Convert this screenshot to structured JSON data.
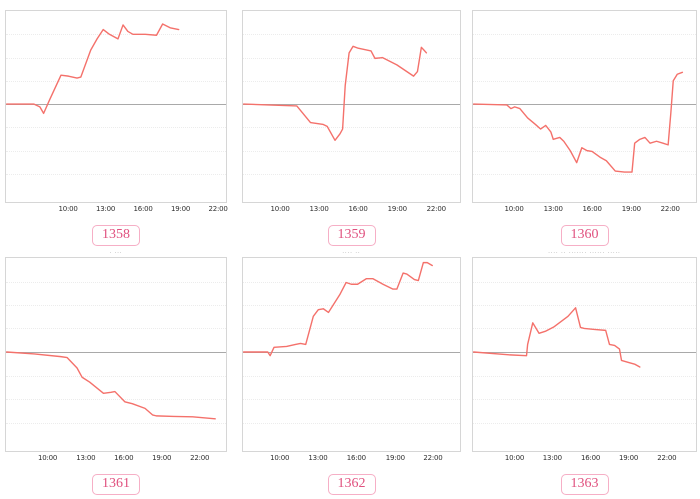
{
  "page": {
    "background": "#ffffff",
    "description_text_color": "#8a8a8a"
  },
  "colors": {
    "line": "#f4716b",
    "zero_line": "#a9a9a9",
    "gridline": "#ececec",
    "panel_border": "#d6d6d6",
    "badge_text": "#e0517f",
    "badge_border": "#f6afc6",
    "tick_text": "#2f2f2f"
  },
  "chart_data": {
    "type": "line",
    "x_tick_labels": [
      "10:00",
      "13:00",
      "16:00",
      "19:00",
      "22:00"
    ],
    "line_color": "#f4716b",
    "grid": "faint dotted horizontal gridlines with solid gray zero baseline",
    "legend": "none",
    "y_axis_labels": "none (values relative to zero baseline, +100 = panel top)",
    "charts": [
      {
        "label": "1358",
        "caption_top": "·········· ····",
        "tick_pct": [
          28.4,
          45.3,
          62.2,
          79.1,
          96.0
        ],
        "points": [
          [
            5.0,
            0
          ],
          [
            7.2,
            0
          ],
          [
            7.7,
            -3
          ],
          [
            8.0,
            -10
          ],
          [
            8.5,
            5
          ],
          [
            9.4,
            31
          ],
          [
            10.0,
            30
          ],
          [
            10.7,
            28
          ],
          [
            11.0,
            29
          ],
          [
            11.8,
            58
          ],
          [
            12.3,
            70
          ],
          [
            12.8,
            80
          ],
          [
            13.3,
            75
          ],
          [
            14.0,
            70
          ],
          [
            14.4,
            85
          ],
          [
            14.8,
            78
          ],
          [
            15.2,
            75
          ],
          [
            16.2,
            75
          ],
          [
            17.1,
            74
          ],
          [
            17.6,
            86
          ],
          [
            18.2,
            82
          ],
          [
            18.9,
            80
          ]
        ]
      },
      {
        "label": "1359",
        "tick_pct": [
          17.4,
          35.2,
          53.0,
          70.9,
          88.7
        ],
        "points": [
          [
            7.1,
            0
          ],
          [
            9.0,
            -1
          ],
          [
            11.25,
            -2
          ],
          [
            12.3,
            -20
          ],
          [
            13.3,
            -22
          ],
          [
            13.6,
            -24
          ],
          [
            14.2,
            -39
          ],
          [
            14.6,
            -32
          ],
          [
            14.8,
            -27
          ],
          [
            15.0,
            20
          ],
          [
            15.3,
            55
          ],
          [
            15.6,
            62
          ],
          [
            16.0,
            60
          ],
          [
            17.0,
            57
          ],
          [
            17.3,
            49
          ],
          [
            17.9,
            50
          ],
          [
            19.0,
            42
          ],
          [
            20.3,
            30
          ],
          [
            20.6,
            35
          ],
          [
            20.9,
            61
          ],
          [
            21.1,
            58
          ],
          [
            21.3,
            55
          ]
        ]
      },
      {
        "label": "1360",
        "tick_pct": [
          18.7,
          36.1,
          53.4,
          70.8,
          88.1
        ],
        "points": [
          [
            6.7,
            0
          ],
          [
            9.4,
            -1
          ],
          [
            9.7,
            -5
          ],
          [
            10.0,
            -3
          ],
          [
            10.4,
            -5
          ],
          [
            11.0,
            -15
          ],
          [
            11.6,
            -22
          ],
          [
            12.0,
            -27
          ],
          [
            12.4,
            -23
          ],
          [
            12.8,
            -30
          ],
          [
            13.0,
            -38
          ],
          [
            13.5,
            -36
          ],
          [
            13.8,
            -40
          ],
          [
            14.3,
            -50
          ],
          [
            14.8,
            -63
          ],
          [
            15.2,
            -47
          ],
          [
            15.6,
            -50
          ],
          [
            16.0,
            -51
          ],
          [
            16.6,
            -57
          ],
          [
            17.1,
            -61
          ],
          [
            17.8,
            -72
          ],
          [
            18.5,
            -73
          ],
          [
            19.1,
            -73
          ],
          [
            19.3,
            -42
          ],
          [
            19.7,
            -38
          ],
          [
            20.1,
            -36
          ],
          [
            20.5,
            -42
          ],
          [
            21.0,
            -40
          ],
          [
            21.5,
            -42
          ],
          [
            21.9,
            -44
          ],
          [
            22.1,
            -10
          ],
          [
            22.3,
            25
          ],
          [
            22.6,
            32
          ],
          [
            23.0,
            34
          ]
        ]
      },
      {
        "label": "1361",
        "caption": "· ···",
        "tick_pct": [
          19.2,
          36.4,
          53.5,
          70.6,
          87.7
        ],
        "points": [
          [
            6.6,
            0
          ],
          [
            8.9,
            -2
          ],
          [
            11.0,
            -5
          ],
          [
            11.5,
            -6
          ],
          [
            12.3,
            -17
          ],
          [
            12.7,
            -27
          ],
          [
            13.3,
            -32
          ],
          [
            14.4,
            -44
          ],
          [
            15.0,
            -43
          ],
          [
            15.3,
            -42
          ],
          [
            16.1,
            -53
          ],
          [
            16.7,
            -55
          ],
          [
            17.7,
            -60
          ],
          [
            18.3,
            -67
          ],
          [
            18.6,
            -68
          ],
          [
            20.0,
            -68.5
          ],
          [
            21.5,
            -69
          ],
          [
            23.3,
            -71
          ]
        ]
      },
      {
        "label": "1362",
        "caption": "···· ··",
        "tick_pct": [
          17.2,
          34.7,
          52.2,
          70.0,
          87.2
        ],
        "points": [
          [
            7.0,
            0
          ],
          [
            9.0,
            0
          ],
          [
            9.2,
            -4
          ],
          [
            9.5,
            5
          ],
          [
            10.5,
            6
          ],
          [
            11.2,
            8
          ],
          [
            11.6,
            9
          ],
          [
            12.0,
            8
          ],
          [
            12.6,
            38
          ],
          [
            13.0,
            45
          ],
          [
            13.4,
            46
          ],
          [
            13.8,
            42
          ],
          [
            14.7,
            61
          ],
          [
            15.2,
            74
          ],
          [
            15.6,
            72
          ],
          [
            16.1,
            72
          ],
          [
            16.8,
            78
          ],
          [
            17.3,
            78
          ],
          [
            18.1,
            72
          ],
          [
            18.9,
            67
          ],
          [
            19.2,
            67
          ],
          [
            19.7,
            84
          ],
          [
            20.0,
            83
          ],
          [
            20.6,
            77
          ],
          [
            20.9,
            76
          ],
          [
            21.3,
            95
          ],
          [
            21.6,
            95
          ],
          [
            22.0,
            92
          ]
        ]
      },
      {
        "label": "1363",
        "caption": "···· ·· ······· ······ ·····",
        "tick_pct": [
          18.9,
          35.7,
          52.7,
          69.6,
          86.6
        ],
        "points": [
          [
            6.6,
            0
          ],
          [
            9.6,
            -3
          ],
          [
            10.9,
            -4
          ],
          [
            11.0,
            8
          ],
          [
            11.4,
            31
          ],
          [
            11.9,
            20
          ],
          [
            12.4,
            22
          ],
          [
            13.1,
            27
          ],
          [
            14.2,
            38
          ],
          [
            14.8,
            47
          ],
          [
            15.2,
            26
          ],
          [
            15.5,
            25
          ],
          [
            16.3,
            24
          ],
          [
            17.2,
            23
          ],
          [
            17.5,
            8
          ],
          [
            17.9,
            7
          ],
          [
            18.3,
            3
          ],
          [
            18.45,
            -9
          ],
          [
            19.0,
            -11
          ],
          [
            19.5,
            -13
          ],
          [
            19.9,
            -16
          ]
        ]
      }
    ]
  }
}
